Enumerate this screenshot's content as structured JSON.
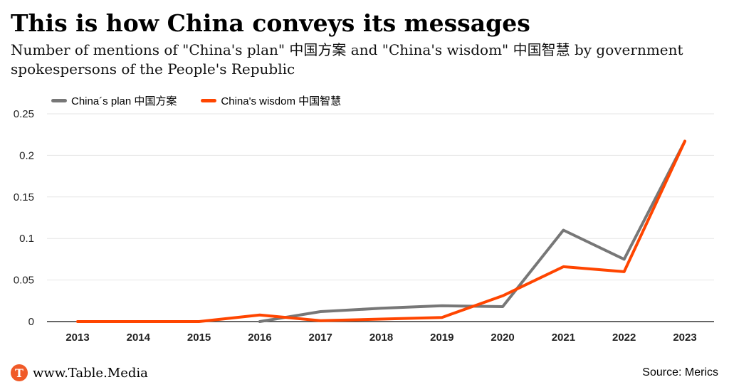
{
  "title": "This is how China conveys its messages",
  "subtitle": "Number of mentions of \"China's plan\" 中国方案 and \"China's wisdom\" 中国智慧 by government spokespersons of the People's Republic",
  "footer": {
    "logo_text": "www.Table.Media",
    "logo_letter": "T",
    "source": "Source: Merics"
  },
  "colors": {
    "plan": "#777777",
    "wisdom": "#ff4500",
    "grid": "#e6e6e6",
    "axis": "#333333",
    "logo": "#f05a28"
  },
  "chart_data": {
    "type": "line",
    "categories": [
      "2013",
      "2014",
      "2015",
      "2016",
      "2017",
      "2018",
      "2019",
      "2020",
      "2021",
      "2022",
      "2023"
    ],
    "series": [
      {
        "name": "China´s plan 中国方案",
        "values": [
          null,
          null,
          null,
          0.0,
          0.012,
          0.016,
          0.019,
          0.018,
          0.11,
          0.075,
          0.217
        ]
      },
      {
        "name": "China's wisdom  中国智慧",
        "values": [
          0.0,
          0.0,
          0.0,
          0.008,
          0.001,
          0.003,
          0.005,
          0.031,
          0.066,
          0.06,
          0.217
        ]
      }
    ],
    "ylim": [
      0,
      0.25
    ],
    "yticks": [
      "0",
      "0.05",
      "0.1",
      "0.15",
      "0.2",
      "0.25"
    ],
    "ytick_values": [
      0,
      0.05,
      0.1,
      0.15,
      0.2,
      0.25
    ],
    "grid": true,
    "legend_position": "top-left"
  }
}
